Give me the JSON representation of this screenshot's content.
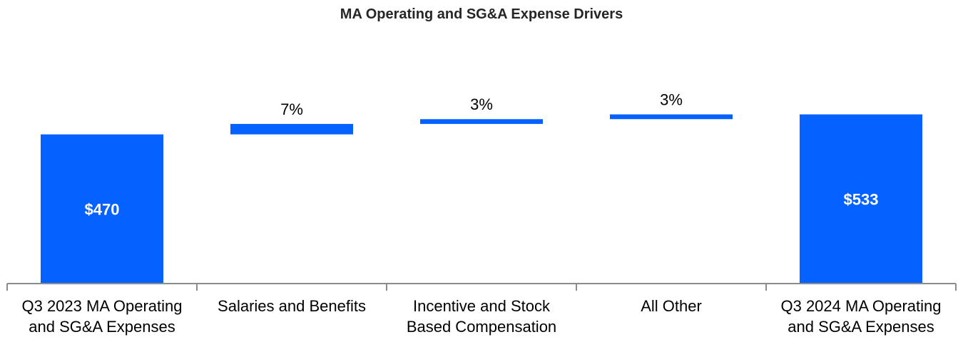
{
  "chart_data": {
    "type": "bar",
    "subtype": "waterfall",
    "title": "MA Operating and SG&A Expense Drivers",
    "xlabel": "",
    "ylabel": "",
    "categories": [
      [
        "Q3 2023 MA Operating",
        "and SG&A Expenses"
      ],
      [
        "Salaries and Benefits"
      ],
      [
        "Incentive and Stock",
        "Based Compensation"
      ],
      [
        "All Other"
      ],
      [
        "Q3 2024 MA Operating",
        "and SG&A Expenses"
      ]
    ],
    "bars": [
      {
        "kind": "total",
        "start": 0,
        "end": 470,
        "label": "$470"
      },
      {
        "kind": "increase",
        "start": 470,
        "end": 503,
        "label": "7%"
      },
      {
        "kind": "increase",
        "start": 503,
        "end": 518,
        "label": "3%"
      },
      {
        "kind": "increase",
        "start": 518,
        "end": 533,
        "label": "3%"
      },
      {
        "kind": "total",
        "start": 0,
        "end": 533,
        "label": "$533"
      }
    ],
    "ylim": [
      0,
      600
    ],
    "grid": false,
    "legend": "none",
    "bar_color": "#0561FF",
    "axis_color": "#8C8C8C"
  }
}
